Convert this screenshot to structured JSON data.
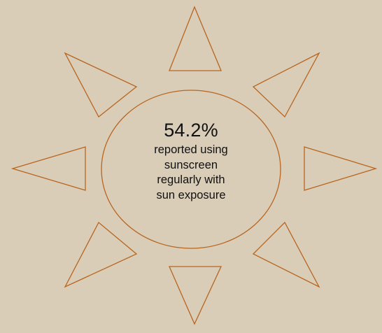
{
  "statistic": {
    "value": "54.2%",
    "caption_lines": [
      "reported using",
      "sunscreen",
      "regularly with",
      "sun exposure"
    ]
  },
  "colors": {
    "background": "#d9cdb8",
    "outline": "#b8651f",
    "text": "#111111"
  },
  "icons": [
    "sun-icon"
  ]
}
